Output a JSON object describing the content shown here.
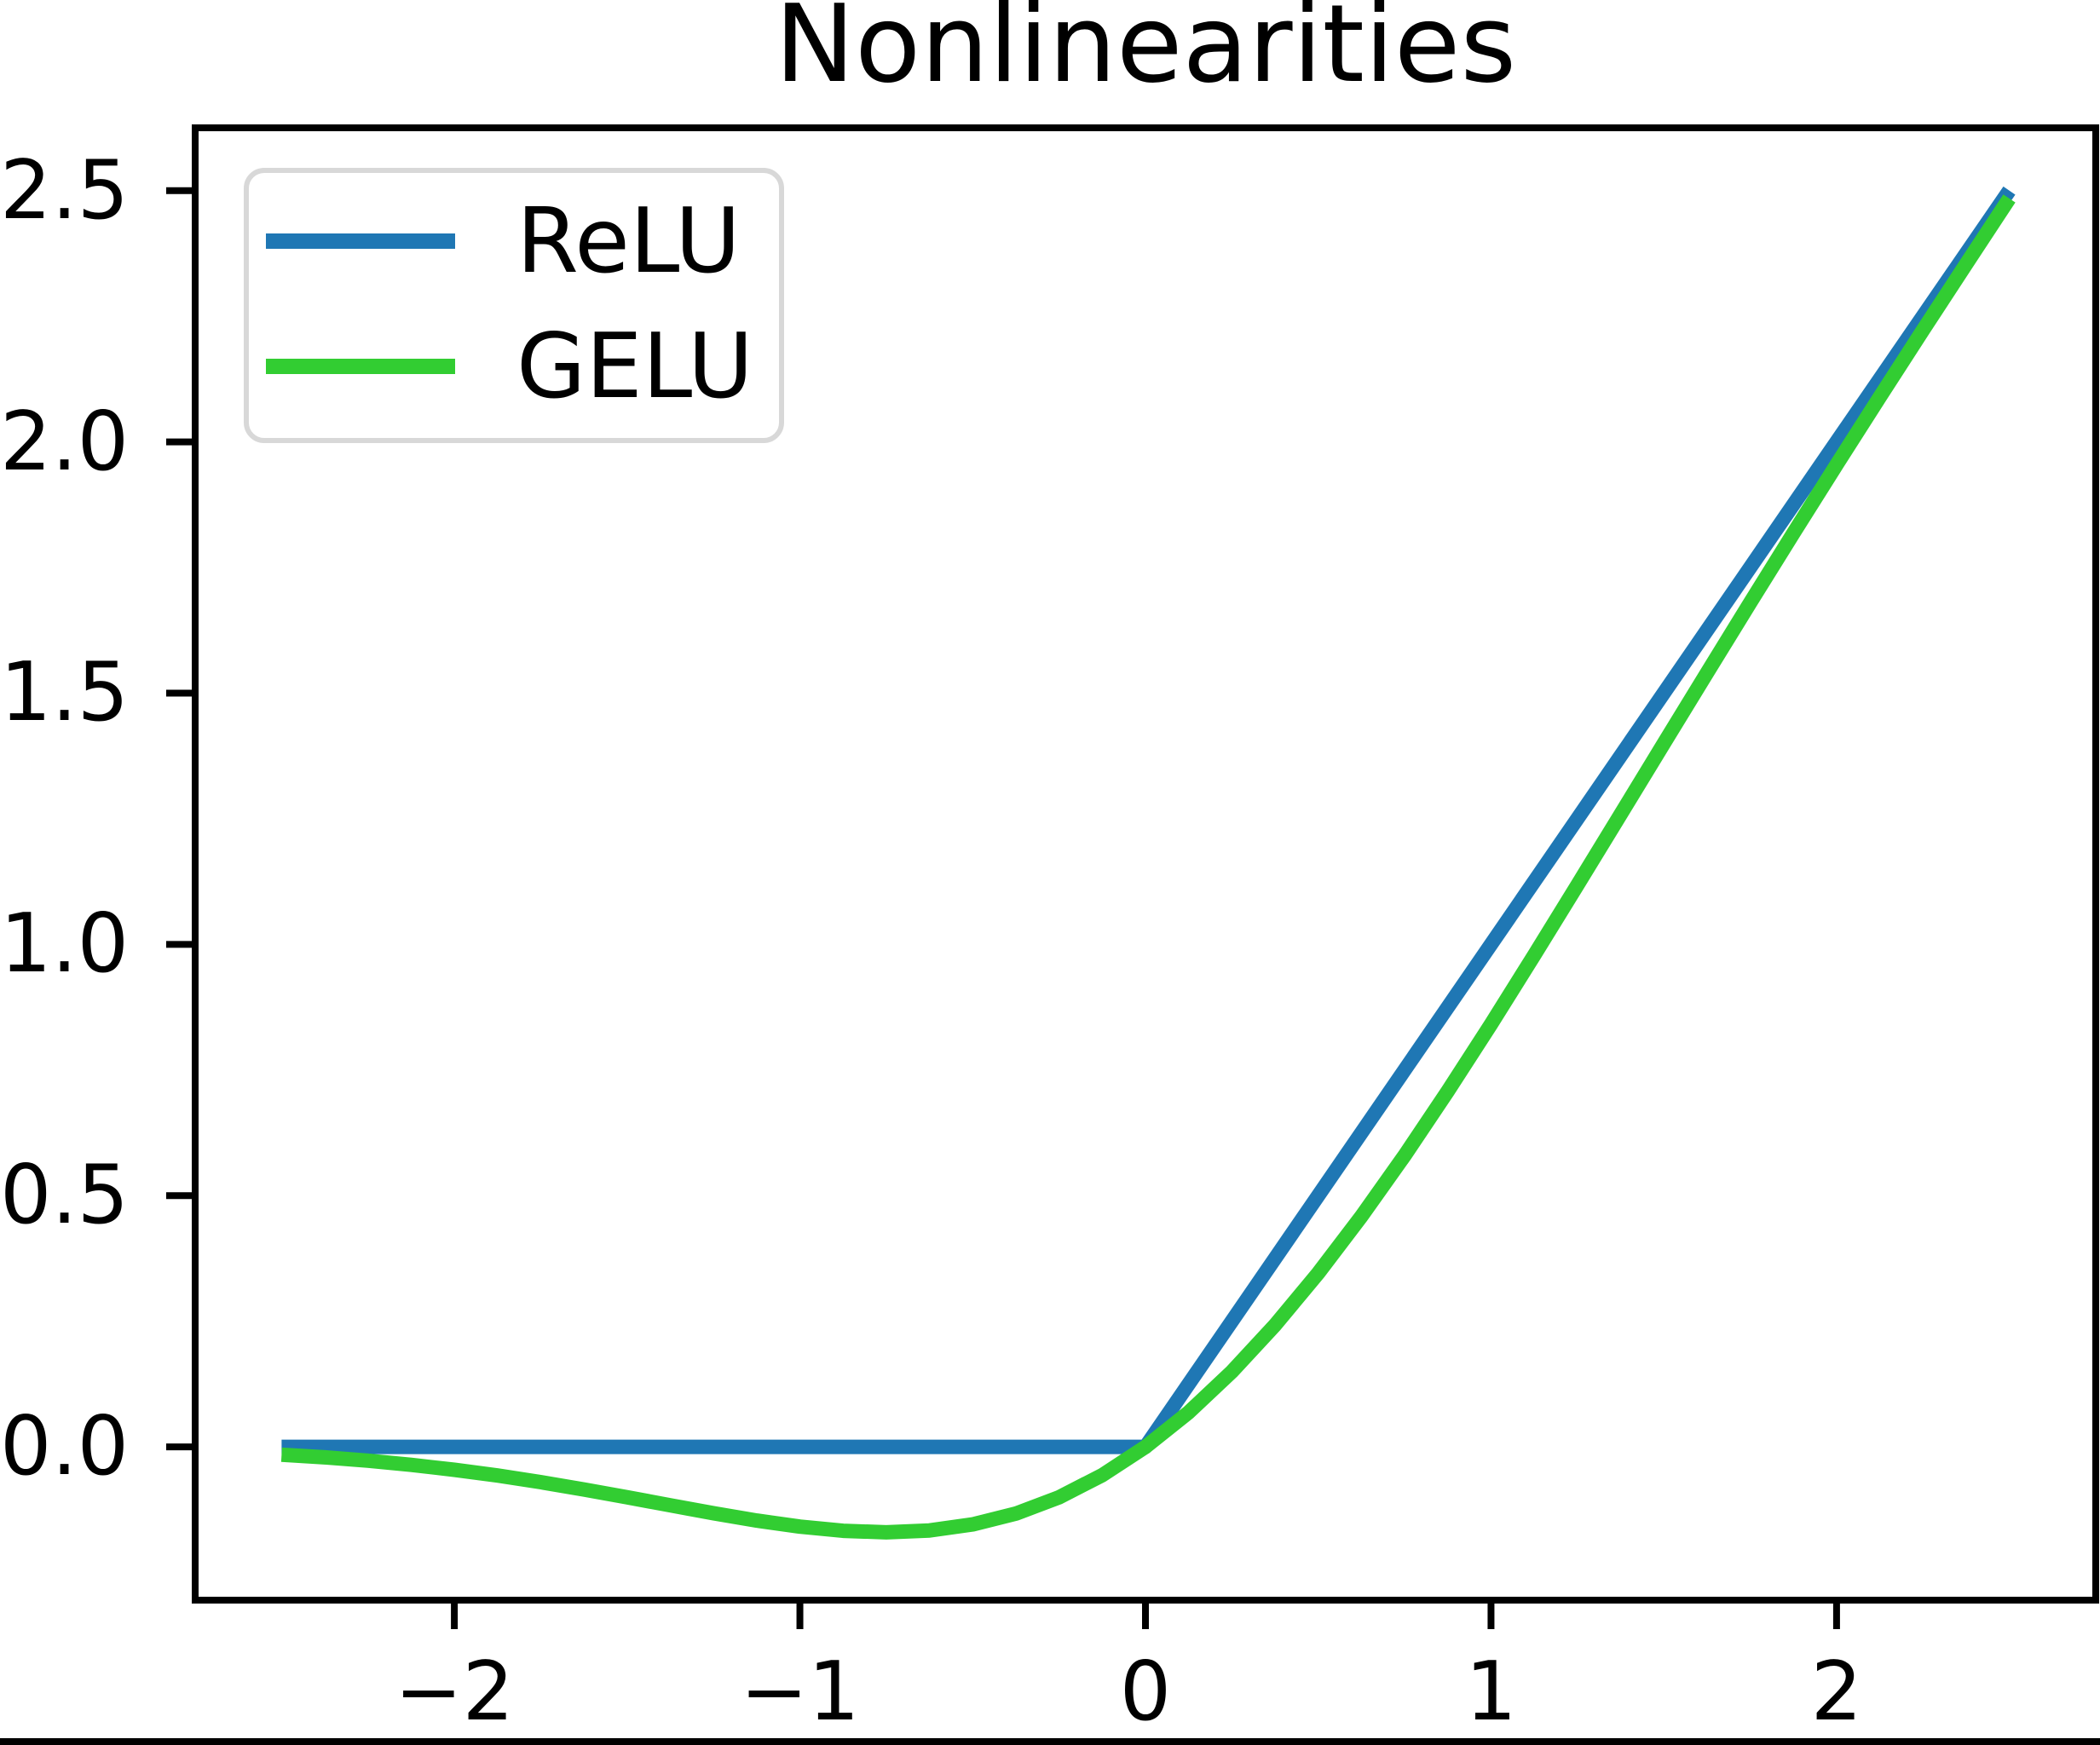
{
  "title": "Nonlinearities",
  "colors": {
    "relu_blue": "#1f77b4",
    "gelu_green": "#32cd32",
    "axis_black": "#000000",
    "legend_border_gray": "#d8d8d8",
    "background": "#ffffff"
  },
  "legend": {
    "position": "upper-left",
    "items": [
      {
        "label": "ReLU"
      },
      {
        "label": "GELU"
      }
    ]
  },
  "chart_data": {
    "type": "line",
    "title": "Nonlinearities",
    "xlabel": "",
    "ylabel": "",
    "grid": false,
    "legend_position": "upper left",
    "xlim": [
      -2.75,
      2.75
    ],
    "ylim": [
      -0.305,
      2.625
    ],
    "x_ticks": {
      "values": [
        -2,
        -1,
        0,
        1,
        2
      ],
      "labels": [
        "−2",
        "−1",
        "0",
        "1",
        "2"
      ]
    },
    "y_ticks": {
      "values": [
        2.5,
        2.0,
        1.5,
        1.0,
        0.5,
        0.0
      ],
      "labels": [
        "2.5",
        "2.0",
        "1.5",
        "1.0",
        "0.5",
        "0.0"
      ]
    },
    "series": [
      {
        "name": "ReLU",
        "color": "#1f77b4",
        "x": [
          -2.5,
          0,
          2.5
        ],
        "y": [
          0,
          0,
          2.5
        ]
      },
      {
        "name": "GELU",
        "color": "#32cd32",
        "x": [
          -2.5,
          -2.375,
          -2.25,
          -2.125,
          -2.0,
          -1.875,
          -1.75,
          -1.625,
          -1.5,
          -1.375,
          -1.25,
          -1.125,
          -1.0,
          -0.875,
          -0.75,
          -0.625,
          -0.5,
          -0.375,
          -0.25,
          -0.125,
          0,
          0.125,
          0.25,
          0.375,
          0.5,
          0.625,
          0.75,
          0.875,
          1.0,
          1.125,
          1.25,
          1.375,
          1.5,
          1.625,
          1.75,
          1.875,
          2.0,
          2.125,
          2.25,
          2.375,
          2.5
        ],
        "y": [
          -0.0155,
          -0.0209,
          -0.0275,
          -0.0357,
          -0.0455,
          -0.057,
          -0.0701,
          -0.0847,
          -0.1002,
          -0.1163,
          -0.1321,
          -0.1466,
          -0.1587,
          -0.167,
          -0.17,
          -0.1663,
          -0.1543,
          -0.1327,
          -0.1003,
          -0.0563,
          0,
          0.0687,
          0.1497,
          0.2423,
          0.3457,
          0.4588,
          0.58,
          0.7081,
          0.8413,
          0.9784,
          1.1179,
          1.2587,
          1.3998,
          1.5403,
          1.6799,
          1.818,
          1.9545,
          2.0893,
          2.2225,
          2.3541,
          2.4845
        ]
      }
    ]
  }
}
